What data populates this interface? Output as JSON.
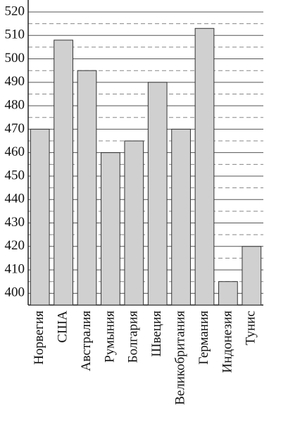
{
  "chart_data": {
    "type": "bar",
    "categories": [
      "Норвегия",
      "США",
      "Австралия",
      "Румыния",
      "Болгария",
      "Швеция",
      "Великобритания",
      "Германия",
      "Индонезия",
      "Тунис"
    ],
    "values": [
      470,
      508,
      495,
      460,
      465,
      490,
      470,
      513,
      405,
      420
    ],
    "color": "#d0d0d0",
    "ylim": [
      395,
      520
    ],
    "yticks": [
      400,
      410,
      420,
      430,
      440,
      450,
      460,
      470,
      480,
      490,
      500,
      510,
      520
    ],
    "minor_yticks": [
      405,
      415,
      425,
      435,
      445,
      455,
      465,
      475,
      485,
      495,
      505,
      515
    ],
    "grid": true
  }
}
